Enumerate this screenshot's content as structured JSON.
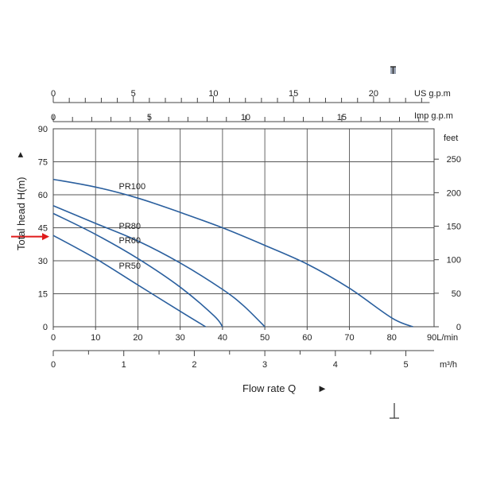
{
  "chart_data": {
    "type": "line",
    "xlabel": "Flow rate  Q",
    "ylabel": "Total  head H(m)",
    "xlim": [
      0,
      90
    ],
    "ylim": [
      0,
      90
    ],
    "grid": true,
    "x_ticks": [
      0,
      10,
      20,
      30,
      40,
      50,
      60,
      70,
      80
    ],
    "x_unit_label": "90L/min",
    "y_ticks": [
      0,
      15,
      30,
      45,
      60,
      75,
      90
    ],
    "feet_axis": {
      "label": "feet",
      "ticks": [
        0,
        50,
        100,
        150,
        200,
        250
      ],
      "per_meter": 3.281
    },
    "usgpm_axis": {
      "label": "US g.p.m",
      "ticks": [
        0,
        5,
        10,
        15,
        20
      ],
      "lpm_per_unit": 3.785,
      "max": 23.5
    },
    "impgpm_axis": {
      "label": "Imp g.p.m",
      "ticks": [
        0,
        5,
        10,
        15
      ],
      "lpm_per_unit": 4.546,
      "max": 19.5
    },
    "m3h_axis": {
      "label": "m³/h",
      "ticks": [
        0,
        1,
        2,
        3,
        4,
        5
      ],
      "lpm_per_unit": 16.667
    },
    "marker_y": 41,
    "series": [
      {
        "name": "PR100",
        "x": [
          0,
          10,
          20,
          30,
          40,
          50,
          60,
          70,
          80,
          85
        ],
        "y": [
          67,
          63.5,
          58.5,
          52,
          45,
          37,
          28.5,
          17.5,
          4,
          0
        ]
      },
      {
        "name": "PR80",
        "x": [
          0,
          10,
          20,
          30,
          40,
          45,
          50
        ],
        "y": [
          55,
          47,
          39,
          29,
          17,
          9.5,
          0
        ]
      },
      {
        "name": "PR60",
        "x": [
          0,
          10,
          20,
          30,
          38,
          40
        ],
        "y": [
          51.5,
          42,
          31,
          18,
          5,
          0
        ]
      },
      {
        "name": "PR50",
        "x": [
          0,
          10,
          20,
          30,
          36
        ],
        "y": [
          41.5,
          31,
          19,
          7,
          0
        ]
      }
    ]
  }
}
